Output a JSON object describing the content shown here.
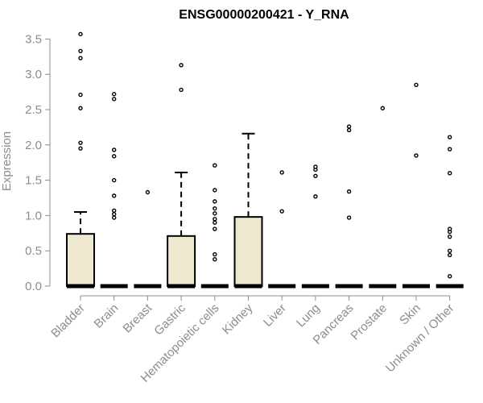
{
  "chart_data": {
    "type": "boxplot",
    "title": "ENSG00000200421 - Y_RNA",
    "ylabel": "Expression",
    "xlabel": "",
    "ylim": [
      0,
      3.6
    ],
    "yticks": [
      "0.0",
      "0.5",
      "1.0",
      "1.5",
      "2.0",
      "2.5",
      "3.0",
      "3.5"
    ],
    "box_fill": "#ede8ce",
    "categories": [
      "Bladder",
      "Brain",
      "Breast",
      "Gastric",
      "Hematopoietic cells",
      "Kidney",
      "Liver",
      "Lung",
      "Pancreas",
      "Prostate",
      "Skin",
      "Unknown / Other"
    ],
    "boxes": [
      {
        "q1": 0,
        "median": 0,
        "q3": 0.74,
        "whisker_low": 0,
        "whisker_high": 1.05,
        "outliers": [
          1.95,
          2.03,
          2.52,
          2.71,
          3.23,
          3.33,
          3.57
        ]
      },
      {
        "q1": 0,
        "median": 0,
        "q3": 0,
        "whisker_low": 0,
        "whisker_high": 0,
        "outliers": [
          0.97,
          1.02,
          1.07,
          1.28,
          1.5,
          1.84,
          1.93,
          2.65,
          2.72
        ]
      },
      {
        "q1": 0,
        "median": 0,
        "q3": 0,
        "whisker_low": 0,
        "whisker_high": 0,
        "outliers": [
          1.33
        ]
      },
      {
        "q1": 0,
        "median": 0,
        "q3": 0.71,
        "whisker_low": 0,
        "whisker_high": 1.61,
        "outliers": [
          2.78,
          3.13
        ]
      },
      {
        "q1": 0,
        "median": 0,
        "q3": 0,
        "whisker_low": 0,
        "whisker_high": 0,
        "outliers": [
          0.38,
          0.45,
          0.81,
          0.9,
          0.95,
          1.03,
          1.1,
          1.2,
          1.36,
          1.71
        ]
      },
      {
        "q1": 0,
        "median": 0,
        "q3": 0.98,
        "whisker_low": 0,
        "whisker_high": 2.16,
        "outliers": []
      },
      {
        "q1": 0,
        "median": 0,
        "q3": 0,
        "whisker_low": 0,
        "whisker_high": 0,
        "outliers": [
          1.06,
          1.61
        ]
      },
      {
        "q1": 0,
        "median": 0,
        "q3": 0,
        "whisker_low": 0,
        "whisker_high": 0,
        "outliers": [
          1.27,
          1.56,
          1.65,
          1.69
        ]
      },
      {
        "q1": 0,
        "median": 0,
        "q3": 0,
        "whisker_low": 0,
        "whisker_high": 0,
        "outliers": [
          0.97,
          1.34,
          2.21,
          2.26
        ]
      },
      {
        "q1": 0,
        "median": 0,
        "q3": 0,
        "whisker_low": 0,
        "whisker_high": 0,
        "outliers": [
          2.52
        ]
      },
      {
        "q1": 0,
        "median": 0,
        "q3": 0,
        "whisker_low": 0,
        "whisker_high": 0,
        "outliers": [
          1.85,
          2.85
        ]
      },
      {
        "q1": 0,
        "median": 0,
        "q3": 0,
        "whisker_low": 0,
        "whisker_high": 0,
        "outliers": [
          0.14,
          0.44,
          0.5,
          0.7,
          0.77,
          0.81,
          1.6,
          1.94,
          2.11
        ]
      }
    ]
  }
}
